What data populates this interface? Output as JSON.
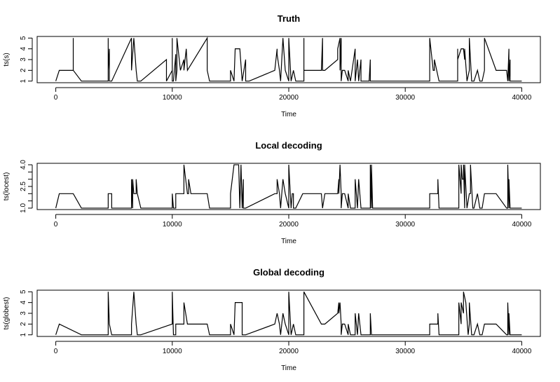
{
  "chart_data": [
    {
      "type": "line",
      "title": "Truth",
      "xlabel": "Time",
      "ylabel": "ts(s)",
      "xlim": [
        -1600,
        41600
      ],
      "ylim": [
        0.85,
        5.15
      ],
      "xticks": [
        0,
        10000,
        20000,
        30000,
        40000
      ],
      "yticks": [
        1,
        2,
        3,
        4,
        5
      ],
      "grid": false,
      "legend": "none",
      "series": [
        {
          "x": [
            0,
            300,
            1500,
            1500,
            1500,
            2200,
            4500,
            4500,
            4500,
            4600,
            4600,
            4600,
            4800,
            6500,
            6500,
            6500,
            6700,
            6900,
            6900,
            7000,
            7300,
            9500,
            9500,
            10000,
            10000,
            10000,
            10100,
            10300,
            10300,
            10300,
            10400,
            10400,
            10700,
            11000,
            11000,
            11200,
            11300,
            13000,
            13000,
            13200,
            15000,
            15000,
            15300,
            15400,
            15400,
            15800,
            16000,
            16300,
            16300,
            16300,
            16600,
            18800,
            19000,
            19000,
            19200,
            19300,
            19500,
            19700,
            20000,
            20000,
            20200,
            20400,
            20400,
            20600,
            21300,
            21300,
            21300,
            22800,
            22900,
            22900,
            23100,
            24200,
            24200,
            24400,
            24400,
            24500,
            24500,
            24600,
            24800,
            25100,
            25100,
            25300,
            25700,
            25700,
            25900,
            26000,
            26200,
            26200,
            26600,
            26900,
            27000,
            27000,
            27100,
            32100,
            32100,
            32400,
            32500,
            32500,
            32700,
            32700,
            32900,
            34500,
            34500,
            34500,
            34800,
            35000,
            35100,
            35100,
            35300,
            35500,
            35500,
            35700,
            35900,
            36200,
            36400,
            36600,
            36800,
            36800,
            37800,
            38700,
            38800,
            38800,
            38900,
            38900,
            39000,
            39000,
            39200,
            39300,
            40000
          ],
          "y": [
            1,
            2,
            2,
            5,
            2,
            1,
            1,
            5,
            2,
            4,
            1,
            1,
            1,
            5,
            2,
            2,
            5,
            2,
            2,
            1,
            1,
            3,
            1,
            2,
            5,
            1,
            1,
            3.5,
            1,
            1,
            2,
            5,
            2,
            3,
            2,
            4,
            2,
            5,
            2,
            1,
            1,
            2,
            1,
            4,
            4,
            4,
            1,
            3,
            1,
            1,
            1,
            2,
            4,
            3.5,
            2,
            1,
            5,
            2,
            1,
            5,
            1,
            2,
            2,
            1,
            1,
            5,
            2,
            2,
            5,
            2,
            2,
            3,
            4,
            5,
            2,
            5,
            1,
            2,
            2,
            1,
            2,
            1,
            4,
            1,
            3,
            1,
            3,
            1,
            1,
            1,
            3,
            1,
            1,
            1,
            5,
            2,
            2,
            3,
            2,
            2,
            1,
            1,
            4,
            3,
            4,
            4,
            3,
            4,
            1,
            2,
            5,
            1,
            1,
            2,
            1,
            1,
            2,
            5,
            2,
            2,
            1,
            1,
            4,
            1,
            3,
            1,
            1,
            1,
            1
          ]
        }
      ]
    },
    {
      "type": "line",
      "title": "Local decoding",
      "xlabel": "Time",
      "ylabel": "ts(locest)",
      "xlim": [
        -1600,
        41600
      ],
      "ylim": [
        0.9,
        4.1
      ],
      "xticks": [
        0,
        10000,
        20000,
        30000,
        40000
      ],
      "yticks": [
        1.0,
        1.5,
        2.0,
        2.5,
        3.0,
        3.5,
        4.0
      ],
      "ytick_labels": [
        "1.0",
        "2.5",
        "4.0"
      ],
      "grid": false,
      "legend": "none",
      "series": [
        {
          "x": [
            0,
            300,
            1500,
            2200,
            4500,
            4500,
            4800,
            4800,
            6500,
            6500,
            6600,
            6600,
            6700,
            6900,
            6900,
            7000,
            7300,
            10000,
            10000,
            10100,
            10300,
            10300,
            11000,
            11000,
            11300,
            11400,
            11400,
            11600,
            13000,
            13000,
            13200,
            15000,
            15000,
            15300,
            15400,
            15400,
            15700,
            15800,
            15900,
            16000,
            16100,
            16100,
            16200,
            16300,
            18800,
            19000,
            19000,
            19200,
            19300,
            19500,
            19700,
            20000,
            20000,
            20200,
            20300,
            20400,
            20400,
            20600,
            21200,
            22800,
            22900,
            23100,
            24200,
            24300,
            24300,
            24400,
            24500,
            24500,
            24600,
            24800,
            25100,
            25100,
            25300,
            25700,
            25700,
            25900,
            26000,
            26200,
            26200,
            27000,
            27000,
            27100,
            27100,
            27200,
            28700,
            28800,
            32100,
            32100,
            32400,
            32500,
            32800,
            32800,
            32900,
            34600,
            34600,
            34800,
            34800,
            34900,
            35000,
            35000,
            35100,
            35100,
            35300,
            35500,
            35600,
            35600,
            35800,
            35900,
            36200,
            36400,
            36600,
            36800,
            37800,
            38700,
            38800,
            38800,
            38900,
            38900,
            39000,
            39000,
            39200,
            39300,
            40000
          ],
          "y": [
            1,
            2,
            2,
            1,
            1,
            2,
            2,
            1,
            1,
            3,
            1,
            3,
            2,
            2,
            3,
            2,
            1,
            1,
            2,
            1,
            1,
            2,
            2,
            4,
            2,
            2,
            3,
            2,
            2,
            2,
            1,
            1,
            2,
            4,
            4,
            4,
            4,
            1,
            4,
            1,
            3,
            1,
            1,
            1,
            2,
            2,
            3,
            2,
            1,
            3,
            2,
            1,
            4,
            1,
            2,
            2,
            1,
            1,
            2,
            2,
            1,
            2,
            2,
            3,
            2,
            4,
            2,
            1,
            2,
            2,
            1,
            2,
            1,
            1,
            3,
            1,
            3,
            1,
            1,
            1,
            4,
            1,
            4,
            1,
            1,
            1,
            1,
            2,
            2,
            2,
            2,
            3,
            1,
            1,
            4,
            2,
            4,
            3,
            3,
            4,
            1,
            4,
            1,
            2,
            2,
            4,
            1,
            1,
            2,
            1,
            1,
            2,
            2,
            1,
            1,
            4,
            1,
            3,
            1,
            1,
            1,
            1,
            1
          ]
        }
      ]
    },
    {
      "type": "line",
      "title": "Global decoding",
      "xlabel": "Time",
      "ylabel": "ts(globest)",
      "xlim": [
        -1600,
        41600
      ],
      "ylim": [
        0.85,
        5.15
      ],
      "xticks": [
        0,
        10000,
        20000,
        30000,
        40000
      ],
      "yticks": [
        1,
        2,
        3,
        4,
        5
      ],
      "grid": false,
      "legend": "none",
      "series": [
        {
          "x": [
            0,
            300,
            2200,
            4500,
            4500,
            4600,
            4800,
            6500,
            6500,
            6700,
            6900,
            6900,
            7000,
            7300,
            10000,
            10000,
            10100,
            10300,
            10300,
            11000,
            11000,
            11300,
            11300,
            13000,
            13200,
            15000,
            15000,
            15300,
            15400,
            16000,
            16000,
            16300,
            18800,
            19000,
            19200,
            19300,
            19500,
            19700,
            20000,
            20000,
            20200,
            20400,
            20400,
            20600,
            21300,
            21300,
            22800,
            22900,
            23100,
            24200,
            24300,
            24300,
            24400,
            24500,
            24500,
            24600,
            24800,
            25100,
            25100,
            25300,
            25700,
            25700,
            25900,
            26000,
            26200,
            26200,
            27000,
            27000,
            27100,
            32100,
            32100,
            32400,
            32500,
            32800,
            32800,
            32900,
            34600,
            34600,
            34800,
            34800,
            35000,
            35000,
            35200,
            35400,
            35500,
            35500,
            35700,
            35900,
            36200,
            36400,
            36600,
            36800,
            37800,
            38700,
            38800,
            38800,
            38900,
            38900,
            39000,
            39000,
            39200,
            39300,
            40000
          ],
          "y": [
            1,
            2,
            1,
            1,
            5,
            2,
            1,
            1,
            2,
            5,
            2,
            2,
            1,
            1,
            2,
            5,
            1,
            1,
            2,
            2,
            4,
            2,
            2,
            2,
            1,
            1,
            2,
            1,
            4,
            4,
            1,
            1,
            2,
            3,
            2,
            1,
            3,
            2,
            1,
            5,
            1,
            2,
            2,
            1,
            1,
            5,
            2,
            2,
            2,
            3,
            4,
            3,
            4,
            2,
            1,
            2,
            2,
            1,
            2,
            1,
            1,
            3,
            1,
            3,
            1,
            1,
            1,
            3,
            1,
            1,
            2,
            2,
            2,
            2,
            3,
            1,
            1,
            4,
            2,
            4,
            3,
            5,
            4,
            1,
            2,
            4,
            1,
            1,
            2,
            1,
            1,
            2,
            2,
            1,
            1,
            4,
            1,
            3,
            1,
            1,
            1,
            1,
            1
          ]
        }
      ]
    }
  ]
}
